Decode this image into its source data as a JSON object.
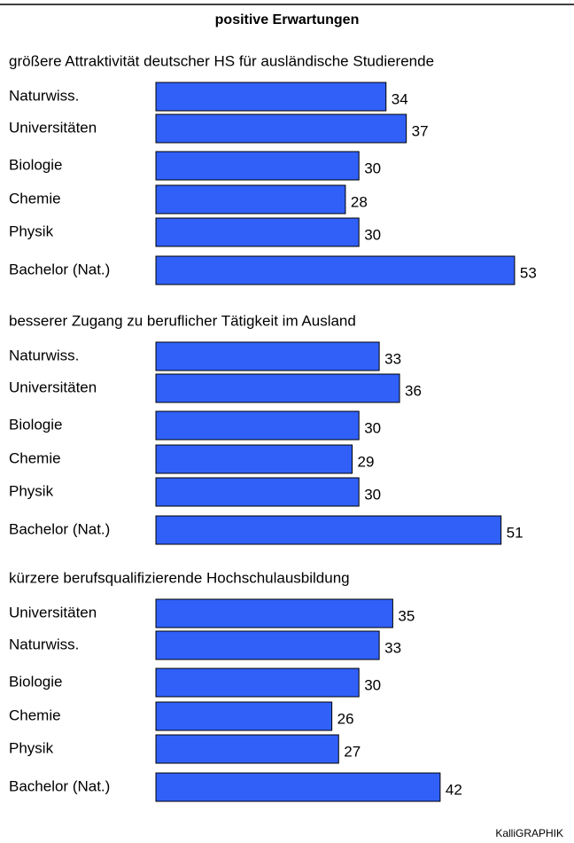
{
  "title": "positive Erwartungen",
  "credit": "KalliGRAPHIK",
  "chart_data": [
    {
      "type": "bar",
      "orientation": "horizontal",
      "title": "größere Attraktivität deutscher HS für ausländische Studierende",
      "categories": [
        "Naturwiss.",
        "Universitäten",
        "Biologie",
        "Chemie",
        "Physik",
        "Bachelor (Nat.)"
      ],
      "values": [
        34,
        37,
        30,
        28,
        30,
        53
      ],
      "color": "#3060f8"
    },
    {
      "type": "bar",
      "orientation": "horizontal",
      "title": "besserer Zugang zu beruflicher Tätigkeit im Ausland",
      "categories": [
        "Naturwiss.",
        "Universitäten",
        "Biologie",
        "Chemie",
        "Physik",
        "Bachelor (Nat.)"
      ],
      "values": [
        33,
        36,
        30,
        29,
        30,
        51
      ],
      "color": "#3060f8"
    },
    {
      "type": "bar",
      "orientation": "horizontal",
      "title": "kürzere berufsqualifizierende Hochschulausbildung",
      "categories": [
        "Universitäten",
        "Naturwiss.",
        "Biologie",
        "Chemie",
        "Physik",
        "Bachelor (Nat.)"
      ],
      "values": [
        35,
        33,
        30,
        26,
        27,
        42
      ],
      "color": "#3060f8"
    }
  ]
}
